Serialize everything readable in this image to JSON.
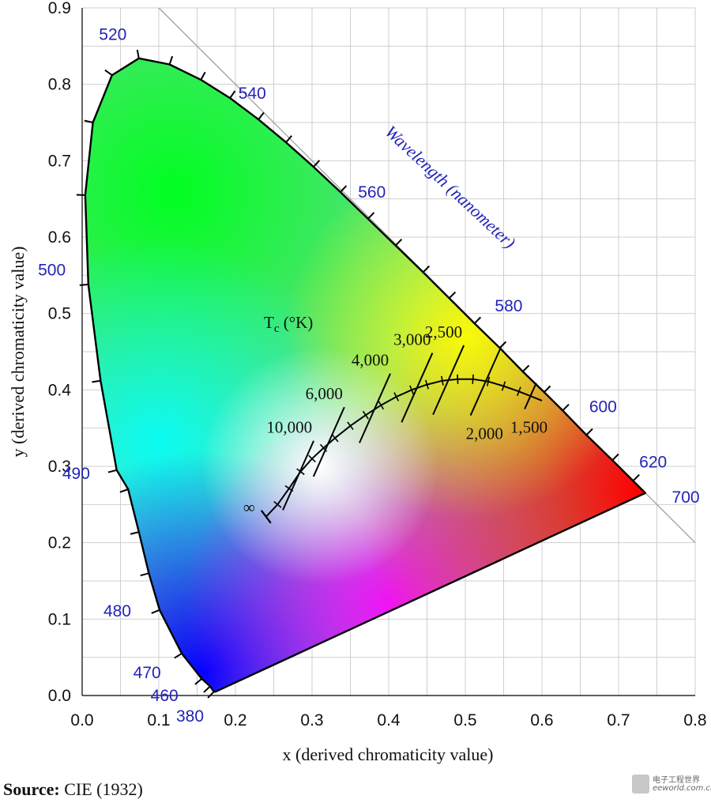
{
  "chart_data": {
    "type": "scatter",
    "xlabel": "x (derived chromaticity value)",
    "ylabel": "y (derived chromaticity value)",
    "xlim": [
      0.0,
      0.8
    ],
    "ylim": [
      0.0,
      0.9
    ],
    "x_ticks": [
      "0.0",
      "0.1",
      "0.2",
      "0.3",
      "0.4",
      "0.5",
      "0.6",
      "0.7",
      "0.8"
    ],
    "y_ticks": [
      "0.0",
      "0.1",
      "0.2",
      "0.3",
      "0.4",
      "0.5",
      "0.6",
      "0.7",
      "0.8",
      "0.9"
    ],
    "grid": true,
    "spectral_locus_title": "Wavelength (nanometer)",
    "spectral_locus": [
      {
        "x": 0.174,
        "y": 0.005
      },
      {
        "x": 0.172,
        "y": 0.005
      },
      {
        "x": 0.167,
        "y": 0.012
      },
      {
        "x": 0.156,
        "y": 0.022
      },
      {
        "x": 0.13,
        "y": 0.055
      },
      {
        "x": 0.101,
        "y": 0.112
      },
      {
        "x": 0.087,
        "y": 0.16
      },
      {
        "x": 0.074,
        "y": 0.214
      },
      {
        "x": 0.06,
        "y": 0.27
      },
      {
        "x": 0.045,
        "y": 0.295
      },
      {
        "x": 0.024,
        "y": 0.412
      },
      {
        "x": 0.008,
        "y": 0.538
      },
      {
        "x": 0.004,
        "y": 0.655
      },
      {
        "x": 0.014,
        "y": 0.75
      },
      {
        "x": 0.039,
        "y": 0.812
      },
      {
        "x": 0.074,
        "y": 0.834
      },
      {
        "x": 0.114,
        "y": 0.826
      },
      {
        "x": 0.155,
        "y": 0.806
      },
      {
        "x": 0.193,
        "y": 0.782
      },
      {
        "x": 0.23,
        "y": 0.754
      },
      {
        "x": 0.266,
        "y": 0.724
      },
      {
        "x": 0.302,
        "y": 0.692
      },
      {
        "x": 0.337,
        "y": 0.659
      },
      {
        "x": 0.373,
        "y": 0.624
      },
      {
        "x": 0.409,
        "y": 0.589
      },
      {
        "x": 0.445,
        "y": 0.554
      },
      {
        "x": 0.479,
        "y": 0.52
      },
      {
        "x": 0.512,
        "y": 0.487
      },
      {
        "x": 0.545,
        "y": 0.455
      },
      {
        "x": 0.575,
        "y": 0.424
      },
      {
        "x": 0.603,
        "y": 0.397
      },
      {
        "x": 0.627,
        "y": 0.373
      },
      {
        "x": 0.658,
        "y": 0.341
      },
      {
        "x": 0.692,
        "y": 0.308
      },
      {
        "x": 0.719,
        "y": 0.281
      },
      {
        "x": 0.735,
        "y": 0.265
      }
    ],
    "wavelength_labels": [
      {
        "label": "380",
        "x": 0.174,
        "y": 0.005
      },
      {
        "label": "460",
        "x": 0.144,
        "y": 0.03
      },
      {
        "label": "470",
        "x": 0.124,
        "y": 0.058
      },
      {
        "label": "480",
        "x": 0.091,
        "y": 0.133
      },
      {
        "label": "490",
        "x": 0.045,
        "y": 0.295
      },
      {
        "label": "500",
        "x": 0.008,
        "y": 0.538
      },
      {
        "label": "520",
        "x": 0.074,
        "y": 0.834
      },
      {
        "label": "540",
        "x": 0.23,
        "y": 0.754
      },
      {
        "label": "560",
        "x": 0.373,
        "y": 0.624
      },
      {
        "label": "580",
        "x": 0.512,
        "y": 0.487
      },
      {
        "label": "600",
        "x": 0.627,
        "y": 0.373
      },
      {
        "label": "620",
        "x": 0.692,
        "y": 0.308
      },
      {
        "label": "700",
        "x": 0.735,
        "y": 0.265
      }
    ],
    "planckian_locus_title": "Tc (°K)",
    "planckian_locus": [
      {
        "x": 0.24,
        "y": 0.234
      },
      {
        "x": 0.255,
        "y": 0.25
      },
      {
        "x": 0.27,
        "y": 0.271
      },
      {
        "x": 0.285,
        "y": 0.293
      },
      {
        "x": 0.3,
        "y": 0.31
      },
      {
        "x": 0.315,
        "y": 0.324
      },
      {
        "x": 0.33,
        "y": 0.337
      },
      {
        "x": 0.35,
        "y": 0.353
      },
      {
        "x": 0.37,
        "y": 0.367
      },
      {
        "x": 0.39,
        "y": 0.38
      },
      {
        "x": 0.41,
        "y": 0.391
      },
      {
        "x": 0.43,
        "y": 0.4
      },
      {
        "x": 0.45,
        "y": 0.407
      },
      {
        "x": 0.47,
        "y": 0.412
      },
      {
        "x": 0.49,
        "y": 0.414
      },
      {
        "x": 0.51,
        "y": 0.414
      },
      {
        "x": 0.53,
        "y": 0.411
      },
      {
        "x": 0.55,
        "y": 0.405
      },
      {
        "x": 0.57,
        "y": 0.398
      },
      {
        "x": 0.585,
        "y": 0.392
      },
      {
        "x": 0.6,
        "y": 0.386
      }
    ],
    "temperature_labels": [
      {
        "label": "∞",
        "x": 0.24,
        "y": 0.234
      },
      {
        "label": "10,000",
        "x": 0.282,
        "y": 0.288
      },
      {
        "label": "6,000",
        "x": 0.322,
        "y": 0.332
      },
      {
        "label": "4,000",
        "x": 0.382,
        "y": 0.376
      },
      {
        "label": "3,000",
        "x": 0.437,
        "y": 0.403
      },
      {
        "label": "2,500",
        "x": 0.478,
        "y": 0.413
      },
      {
        "label": "2,000",
        "x": 0.527,
        "y": 0.412
      },
      {
        "label": "1,500",
        "x": 0.585,
        "y": 0.392
      }
    ]
  },
  "source": {
    "label": "Source:",
    "text": "CIE (1932)"
  },
  "watermark": {
    "line1": "电子工程世界",
    "line2": "eeworld.com.cn"
  }
}
